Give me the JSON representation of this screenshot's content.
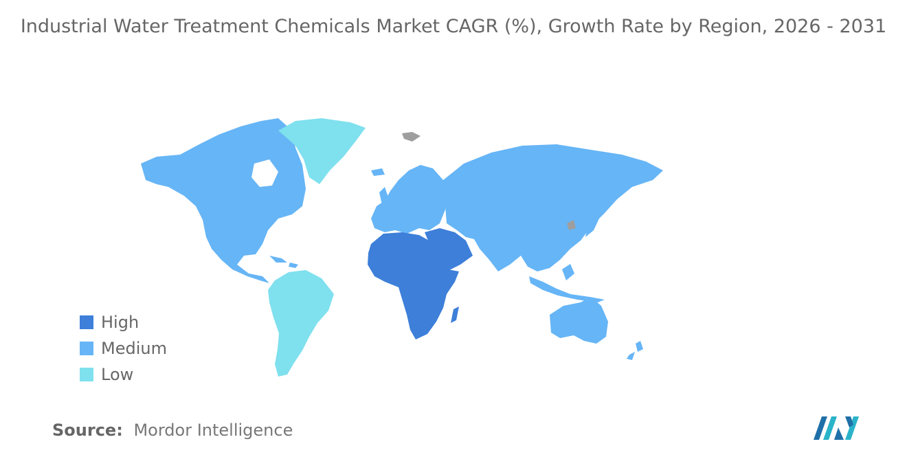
{
  "title": "Industrial Water Treatment Chemicals Market CAGR (%), Growth Rate by Region, 2026 - 2031",
  "legend": [
    {
      "label": "High",
      "color": "#3d7fd9"
    },
    {
      "label": "Medium",
      "color": "#66b5f6"
    },
    {
      "label": "Low",
      "color": "#7fe0ee"
    }
  ],
  "regions": {
    "high": [
      "Africa",
      "Middle East"
    ],
    "medium": [
      "North America",
      "Europe",
      "Asia",
      "Oceania"
    ],
    "low": [
      "South America",
      "Greenland"
    ]
  },
  "no_data_color": "#9e9e9e",
  "source": {
    "label": "Source:",
    "value": "Mordor Intelligence"
  },
  "logo_icon": "mordor-intelligence-logo"
}
